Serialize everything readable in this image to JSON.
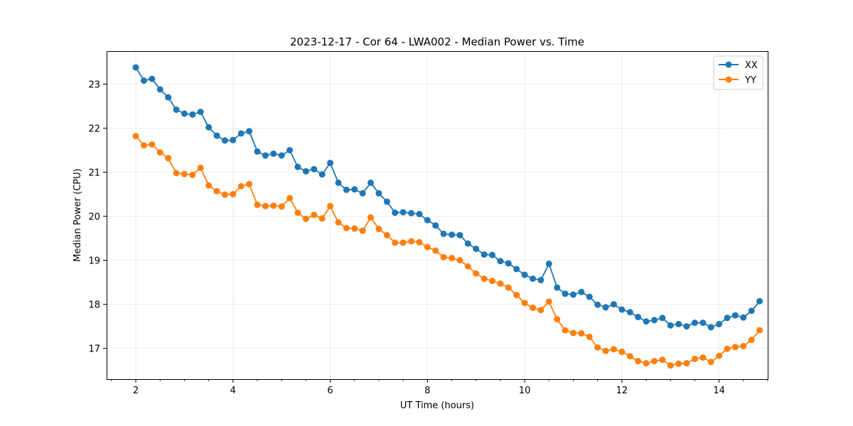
{
  "chart_data": {
    "type": "line",
    "title": "2023-12-17 - Cor 64 - LWA002 - Median Power vs. Time",
    "xlabel": "UT Time (hours)",
    "ylabel": "Median Power (CPU)",
    "xlim": [
      1.4,
      15.0
    ],
    "ylim": [
      16.3,
      23.75
    ],
    "xticks": [
      2,
      4,
      6,
      8,
      10,
      12,
      14
    ],
    "yticks": [
      17,
      18,
      19,
      20,
      21,
      22,
      23
    ],
    "grid": true,
    "legend_position": "top-right",
    "x": [
      2.0,
      2.167,
      2.333,
      2.5,
      2.667,
      2.833,
      3.0,
      3.167,
      3.333,
      3.5,
      3.667,
      3.833,
      4.0,
      4.167,
      4.333,
      4.5,
      4.667,
      4.833,
      5.0,
      5.167,
      5.333,
      5.5,
      5.667,
      5.833,
      6.0,
      6.167,
      6.333,
      6.5,
      6.667,
      6.833,
      7.0,
      7.167,
      7.333,
      7.5,
      7.667,
      7.833,
      8.0,
      8.167,
      8.333,
      8.5,
      8.667,
      8.833,
      9.0,
      9.167,
      9.333,
      9.5,
      9.667,
      9.833,
      10.0,
      10.167,
      10.333,
      10.5,
      10.667,
      10.833,
      11.0,
      11.167,
      11.333,
      11.5,
      11.667,
      11.833,
      12.0,
      12.167,
      12.333,
      12.5,
      12.667,
      12.833,
      13.0,
      13.167,
      13.333,
      13.5,
      13.667,
      13.833,
      14.0,
      14.167,
      14.333,
      14.5,
      14.667,
      14.833
    ],
    "series": [
      {
        "name": "XX",
        "color": "#1f77b4",
        "values": [
          23.38,
          23.08,
          23.12,
          22.88,
          22.7,
          22.42,
          22.33,
          22.31,
          22.37,
          22.02,
          21.83,
          21.72,
          21.73,
          21.88,
          21.93,
          21.47,
          21.38,
          21.42,
          21.38,
          21.5,
          21.12,
          21.02,
          21.07,
          20.95,
          21.21,
          20.76,
          20.6,
          20.61,
          20.52,
          20.76,
          20.52,
          20.33,
          20.08,
          20.09,
          20.07,
          20.05,
          19.91,
          19.79,
          19.6,
          19.58,
          19.57,
          19.38,
          19.26,
          19.13,
          19.12,
          18.98,
          18.93,
          18.8,
          18.67,
          18.58,
          18.55,
          18.92,
          18.38,
          18.24,
          18.22,
          18.28,
          18.17,
          17.99,
          17.93,
          18.0,
          17.88,
          17.82,
          17.71,
          17.61,
          17.64,
          17.69,
          17.52,
          17.55,
          17.5,
          17.58,
          17.58,
          17.48,
          17.55,
          17.69,
          17.75,
          17.7,
          17.85,
          18.07
        ]
      },
      {
        "name": "YY",
        "color": "#ff7f0e",
        "values": [
          21.82,
          21.61,
          21.63,
          21.45,
          21.32,
          20.98,
          20.96,
          20.94,
          21.1,
          20.7,
          20.57,
          20.49,
          20.5,
          20.68,
          20.73,
          20.26,
          20.23,
          20.24,
          20.22,
          20.41,
          20.08,
          19.94,
          20.03,
          19.95,
          20.23,
          19.86,
          19.73,
          19.72,
          19.67,
          19.97,
          19.71,
          19.57,
          19.4,
          19.4,
          19.43,
          19.41,
          19.3,
          19.22,
          19.07,
          19.05,
          19.0,
          18.86,
          18.7,
          18.58,
          18.53,
          18.47,
          18.38,
          18.21,
          18.03,
          17.92,
          17.87,
          18.06,
          17.66,
          17.41,
          17.35,
          17.34,
          17.26,
          17.02,
          16.94,
          16.98,
          16.92,
          16.82,
          16.71,
          16.66,
          16.71,
          16.74,
          16.61,
          16.65,
          16.66,
          16.76,
          16.79,
          16.69,
          16.83,
          16.99,
          17.03,
          17.05,
          17.19,
          17.41
        ]
      }
    ]
  }
}
